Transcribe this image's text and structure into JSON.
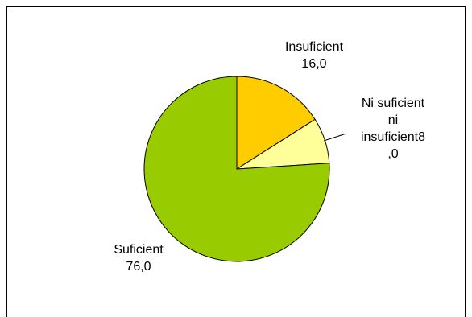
{
  "chart_data": {
    "type": "pie",
    "title": "",
    "categories": [
      "Insuficient",
      "Ni suficient ni insuficient",
      "Suficient"
    ],
    "values": [
      16.0,
      8.0,
      76.0
    ],
    "value_labels": [
      "16,0",
      "8,0",
      "76,0"
    ],
    "colors": [
      "#FFCC00",
      "#FFFF99",
      "#99CC00"
    ],
    "legend": "none",
    "start_angle": "12 o'clock",
    "direction": "clockwise"
  },
  "labels": {
    "insuficient": {
      "line1": "Insuficient",
      "line2": "16,0"
    },
    "ni_suficient": {
      "line1": "Ni suficient",
      "line2": "ni",
      "line3": "insuficient8",
      "line4": ",0"
    },
    "suficient": {
      "line1": "Suficient",
      "line2": "76,0"
    }
  }
}
